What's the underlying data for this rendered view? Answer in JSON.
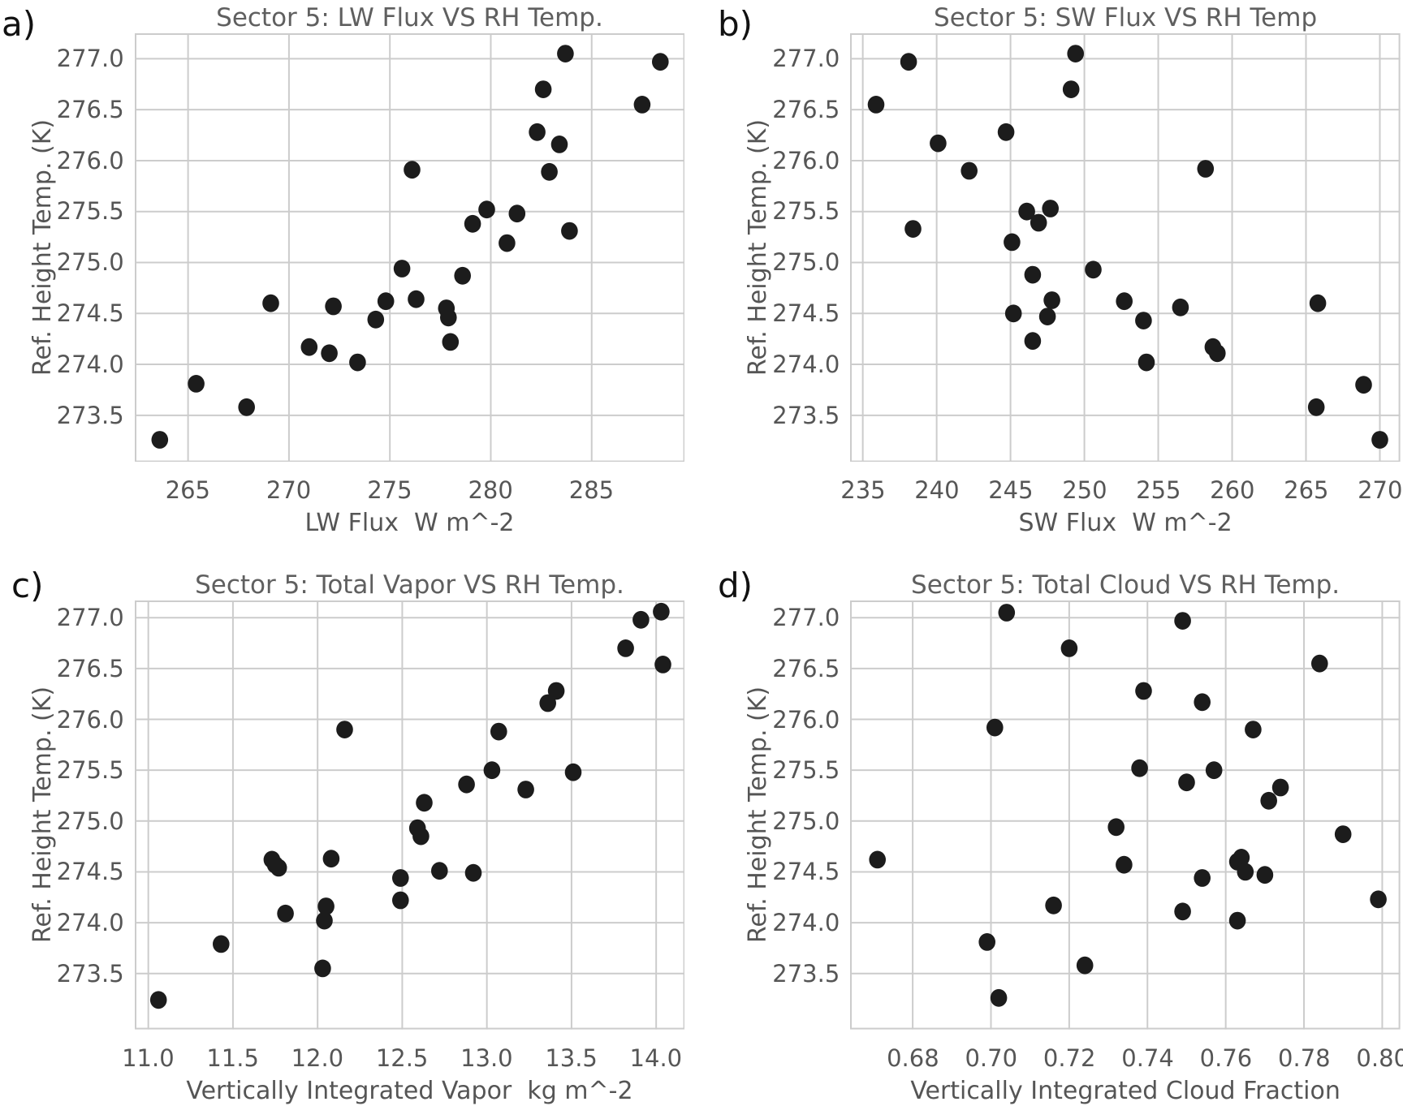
{
  "figure": {
    "point_color": "#1c1c1c",
    "grid_color": "#cccccc",
    "title_color": "#5f5f5f",
    "tick_color": "#565656",
    "axis_label_color": "#555555",
    "letter_color": "#111111",
    "background_color": "#ffffff"
  },
  "chart_data": [
    {
      "id": "a",
      "type": "scatter",
      "letter": "a)",
      "title": "Sector 5: LW Flux VS RH Temp.",
      "xlabel": "LW Flux  W m^-2",
      "ylabel": "Ref. Height Temp. (K)",
      "xlim": [
        262.36,
        289.62
      ],
      "ylim": [
        273.04,
        277.25
      ],
      "grid": true,
      "x_ticks": {
        "values": [
          265,
          270,
          275,
          280,
          285
        ],
        "labels": [
          "265",
          "270",
          "275",
          "280",
          "285"
        ]
      },
      "y_ticks": {
        "values": [
          277.0,
          276.5,
          276.0,
          275.5,
          275.0,
          274.5,
          274.0,
          273.5
        ],
        "labels": [
          "277.0",
          "276.5",
          "276.0",
          "275.5",
          "275.0",
          "274.5",
          "274.0",
          "273.5"
        ]
      },
      "points": [
        [
          263.6,
          273.26
        ],
        [
          265.4,
          273.81
        ],
        [
          267.9,
          273.58
        ],
        [
          269.1,
          274.6
        ],
        [
          271.0,
          274.17
        ],
        [
          272.0,
          274.11
        ],
        [
          272.2,
          274.57
        ],
        [
          273.4,
          274.02
        ],
        [
          274.3,
          274.44
        ],
        [
          274.8,
          274.62
        ],
        [
          275.6,
          274.94
        ],
        [
          276.1,
          275.91
        ],
        [
          276.3,
          274.64
        ],
        [
          277.8,
          274.55
        ],
        [
          277.9,
          274.46
        ],
        [
          278.0,
          274.22
        ],
        [
          278.6,
          274.87
        ],
        [
          279.1,
          275.38
        ],
        [
          279.8,
          275.52
        ],
        [
          280.8,
          275.19
        ],
        [
          281.3,
          275.48
        ],
        [
          282.3,
          276.28
        ],
        [
          282.6,
          276.7
        ],
        [
          282.9,
          275.89
        ],
        [
          283.4,
          276.16
        ],
        [
          283.7,
          277.05
        ],
        [
          283.9,
          275.31
        ],
        [
          287.5,
          276.55
        ],
        [
          288.4,
          276.97
        ]
      ]
    },
    {
      "id": "b",
      "type": "scatter",
      "letter": "b)",
      "title": "Sector 5: SW Flux VS RH Temp",
      "xlabel": "SW Flux  W m^-2",
      "ylabel": "Ref. Height Temp. (K)",
      "xlim": [
        234.14,
        271.38
      ],
      "ylim": [
        273.04,
        277.25
      ],
      "grid": true,
      "x_ticks": {
        "values": [
          235,
          240,
          245,
          250,
          255,
          260,
          265,
          270
        ],
        "labels": [
          "235",
          "240",
          "245",
          "250",
          "255",
          "260",
          "265",
          "270"
        ]
      },
      "y_ticks": {
        "values": [
          277.0,
          276.5,
          276.0,
          275.5,
          275.0,
          274.5,
          274.0,
          273.5
        ],
        "labels": [
          "277.0",
          "276.5",
          "276.0",
          "275.5",
          "275.0",
          "274.5",
          "274.0",
          "273.5"
        ]
      },
      "points": [
        [
          235.9,
          276.55
        ],
        [
          238.1,
          276.97
        ],
        [
          238.4,
          275.33
        ],
        [
          240.1,
          276.17
        ],
        [
          242.2,
          275.9
        ],
        [
          244.7,
          276.28
        ],
        [
          245.1,
          275.2
        ],
        [
          245.2,
          274.5
        ],
        [
          246.1,
          275.5
        ],
        [
          246.5,
          274.88
        ],
        [
          246.5,
          274.23
        ],
        [
          246.9,
          275.39
        ],
        [
          247.7,
          275.53
        ],
        [
          247.8,
          274.63
        ],
        [
          247.5,
          274.47
        ],
        [
          249.1,
          276.7
        ],
        [
          249.4,
          277.05
        ],
        [
          250.6,
          274.93
        ],
        [
          252.7,
          274.62
        ],
        [
          254.0,
          274.43
        ],
        [
          254.2,
          274.02
        ],
        [
          256.5,
          274.56
        ],
        [
          258.2,
          275.92
        ],
        [
          258.7,
          274.17
        ],
        [
          259.0,
          274.11
        ],
        [
          265.7,
          273.58
        ],
        [
          265.8,
          274.6
        ],
        [
          268.9,
          273.8
        ],
        [
          270.0,
          273.26
        ]
      ]
    },
    {
      "id": "c",
      "type": "scatter",
      "letter": "c)",
      "title": "Sector 5: Total Vapor VS RH Temp.",
      "xlabel": "Vertically Integrated Vapor  kg m^-2",
      "ylabel": "Ref. Height Temp. (K)",
      "xlim": [
        10.92,
        14.17
      ],
      "ylim": [
        272.95,
        277.17
      ],
      "grid": true,
      "x_ticks": {
        "values": [
          11.0,
          11.5,
          12.0,
          12.5,
          13.0,
          13.5,
          14.0
        ],
        "labels": [
          "11.0",
          "11.5",
          "12.0",
          "12.5",
          "13.0",
          "13.5",
          "14.0"
        ]
      },
      "y_ticks": {
        "values": [
          277.0,
          276.5,
          276.0,
          275.5,
          275.0,
          274.5,
          274.0,
          273.5
        ],
        "labels": [
          "277.0",
          "276.5",
          "276.0",
          "275.5",
          "275.0",
          "274.5",
          "274.0",
          "273.5"
        ]
      },
      "points": [
        [
          11.06,
          273.24
        ],
        [
          11.43,
          273.79
        ],
        [
          11.73,
          274.62
        ],
        [
          11.75,
          274.57
        ],
        [
          11.77,
          274.54
        ],
        [
          11.81,
          274.09
        ],
        [
          12.03,
          273.55
        ],
        [
          12.04,
          274.02
        ],
        [
          12.05,
          274.16
        ],
        [
          12.08,
          274.63
        ],
        [
          12.16,
          275.9
        ],
        [
          12.49,
          274.44
        ],
        [
          12.49,
          274.22
        ],
        [
          12.59,
          274.93
        ],
        [
          12.61,
          274.85
        ],
        [
          12.63,
          275.18
        ],
        [
          12.72,
          274.51
        ],
        [
          12.88,
          275.36
        ],
        [
          12.92,
          274.49
        ],
        [
          13.03,
          275.5
        ],
        [
          13.07,
          275.88
        ],
        [
          13.23,
          275.31
        ],
        [
          13.36,
          276.16
        ],
        [
          13.41,
          276.28
        ],
        [
          13.51,
          275.48
        ],
        [
          13.82,
          276.7
        ],
        [
          13.91,
          276.98
        ],
        [
          14.03,
          277.06
        ],
        [
          14.04,
          276.54
        ]
      ]
    },
    {
      "id": "d",
      "type": "scatter",
      "letter": "d)",
      "title": "Sector 5: Total Cloud VS RH Temp.",
      "xlabel": "Vertically Integrated Cloud Fraction",
      "ylabel": "Ref. Height Temp. (K)",
      "xlim": [
        0.664,
        0.8046
      ],
      "ylim": [
        272.95,
        277.17
      ],
      "grid": true,
      "x_ticks": {
        "values": [
          0.68,
          0.7,
          0.72,
          0.74,
          0.76,
          0.78,
          0.8
        ],
        "labels": [
          "0.68",
          "0.70",
          "0.72",
          "0.74",
          "0.76",
          "0.78",
          "0.80"
        ]
      },
      "y_ticks": {
        "values": [
          277.0,
          276.5,
          276.0,
          275.5,
          275.0,
          274.5,
          274.0,
          273.5
        ],
        "labels": [
          "277.0",
          "276.5",
          "276.0",
          "275.5",
          "275.0",
          "274.5",
          "274.0",
          "273.5"
        ]
      },
      "points": [
        [
          0.671,
          274.62
        ],
        [
          0.699,
          273.81
        ],
        [
          0.701,
          275.92
        ],
        [
          0.702,
          273.26
        ],
        [
          0.704,
          277.05
        ],
        [
          0.716,
          274.17
        ],
        [
          0.72,
          276.7
        ],
        [
          0.724,
          273.58
        ],
        [
          0.732,
          274.94
        ],
        [
          0.734,
          274.57
        ],
        [
          0.738,
          275.52
        ],
        [
          0.739,
          276.28
        ],
        [
          0.749,
          276.97
        ],
        [
          0.749,
          274.11
        ],
        [
          0.75,
          275.38
        ],
        [
          0.754,
          276.17
        ],
        [
          0.754,
          274.44
        ],
        [
          0.757,
          275.5
        ],
        [
          0.763,
          274.6
        ],
        [
          0.763,
          274.02
        ],
        [
          0.764,
          274.64
        ],
        [
          0.765,
          274.5
        ],
        [
          0.767,
          275.9
        ],
        [
          0.77,
          274.47
        ],
        [
          0.771,
          275.2
        ],
        [
          0.774,
          275.33
        ],
        [
          0.784,
          276.55
        ],
        [
          0.79,
          274.87
        ],
        [
          0.799,
          274.23
        ]
      ]
    }
  ]
}
